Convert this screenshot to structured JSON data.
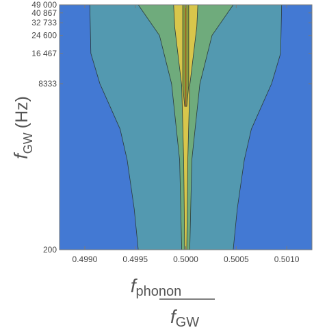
{
  "chart_data": {
    "type": "heatmap",
    "subtype": "contour",
    "xlabel_main": "f",
    "xlabel_main_sub": "phonon",
    "xlabel_den": "f",
    "xlabel_den_sub": "GW",
    "ylabel_main": "f",
    "ylabel_sub": "GW",
    "ylabel_units": "(Hz)",
    "xlim": [
      0.49875,
      0.50125
    ],
    "ylim": [
      200,
      49000
    ],
    "y_scale": "log",
    "x_ticks": [
      {
        "value": 0.499,
        "label": "0.4990"
      },
      {
        "value": 0.4995,
        "label": "0.4995"
      },
      {
        "value": 0.5,
        "label": "0.5000"
      },
      {
        "value": 0.5005,
        "label": "0.5005"
      },
      {
        "value": 0.501,
        "label": "0.5010"
      }
    ],
    "y_ticks": [
      {
        "value": 200,
        "label": "200"
      },
      {
        "value": 8333,
        "label": "8333"
      },
      {
        "value": 16467,
        "label": "16 467"
      },
      {
        "value": 24600,
        "label": "24 600"
      },
      {
        "value": 32733,
        "label": "32 733"
      },
      {
        "value": 40867,
        "label": "40 867"
      },
      {
        "value": 49000,
        "label": "49 000"
      }
    ],
    "contour_levels": [
      {
        "level": 1,
        "color": "#3a43c8",
        "left": [
          [
            0.49875,
            200
          ],
          [
            0.49885,
            200
          ],
          [
            0.49882,
            400
          ],
          [
            0.49879,
            800
          ],
          [
            0.49876,
            1400
          ],
          [
            0.49875,
            1700
          ]
        ],
        "right": [
          [
            0.50125,
            1700
          ],
          [
            0.50124,
            1400
          ],
          [
            0.50121,
            800
          ],
          [
            0.50118,
            400
          ],
          [
            0.50115,
            200
          ],
          [
            0.50125,
            200
          ]
        ]
      },
      {
        "level": 2,
        "color": "#4379d3",
        "left": [
          [
            0.49875,
            49000
          ],
          [
            0.50125,
            49000
          ],
          [
            0.50125,
            200
          ],
          [
            0.49875,
            200
          ]
        ],
        "right": []
      },
      {
        "level": 3,
        "color": "#5399b0",
        "left": [
          [
            0.49905,
            49000
          ],
          [
            0.49906,
            16467
          ],
          [
            0.49915,
            8333
          ],
          [
            0.49925,
            5000
          ],
          [
            0.49935,
            3000
          ],
          [
            0.49942,
            1500
          ],
          [
            0.49949,
            500
          ],
          [
            0.49953,
            200
          ]
        ],
        "right": [
          [
            0.50047,
            200
          ],
          [
            0.50051,
            500
          ],
          [
            0.50058,
            1500
          ],
          [
            0.50065,
            3000
          ],
          [
            0.50075,
            5000
          ],
          [
            0.50085,
            8333
          ],
          [
            0.50094,
            16467
          ],
          [
            0.50095,
            49000
          ]
        ]
      },
      {
        "level": 4,
        "color": "#6fab7c",
        "left": [
          [
            0.49953,
            49000
          ],
          [
            0.49974,
            24600
          ],
          [
            0.49986,
            8333
          ],
          [
            0.49994,
            1500
          ],
          [
            0.49996,
            200
          ]
        ],
        "right": [
          [
            0.50004,
            200
          ],
          [
            0.50006,
            1500
          ],
          [
            0.50014,
            8333
          ],
          [
            0.50026,
            24600
          ],
          [
            0.50047,
            49000
          ]
        ]
      },
      {
        "level": 5,
        "color": "#d8c64b",
        "left": [
          [
            0.49988,
            49000
          ],
          [
            0.49989,
            30000
          ],
          [
            0.49996,
            8000
          ],
          [
            0.49998,
            1500
          ],
          [
            0.49999,
            200
          ]
        ],
        "right": [
          [
            0.50001,
            200
          ],
          [
            0.50002,
            1500
          ],
          [
            0.50004,
            8000
          ],
          [
            0.50011,
            30000
          ],
          [
            0.50012,
            49000
          ]
        ]
      },
      {
        "level": 6,
        "color": "#8a9e3e",
        "left": [
          [
            0.49997,
            49000
          ],
          [
            0.49997,
            8000
          ],
          [
            0.49999,
            5000
          ]
        ],
        "right": [
          [
            0.50001,
            5000
          ],
          [
            0.50003,
            8000
          ],
          [
            0.50003,
            49000
          ]
        ]
      }
    ],
    "centerline": {
      "x": 0.5,
      "color": "#a05a26",
      "from": 5000,
      "to": 49000
    },
    "grid": false,
    "legend": "none"
  }
}
